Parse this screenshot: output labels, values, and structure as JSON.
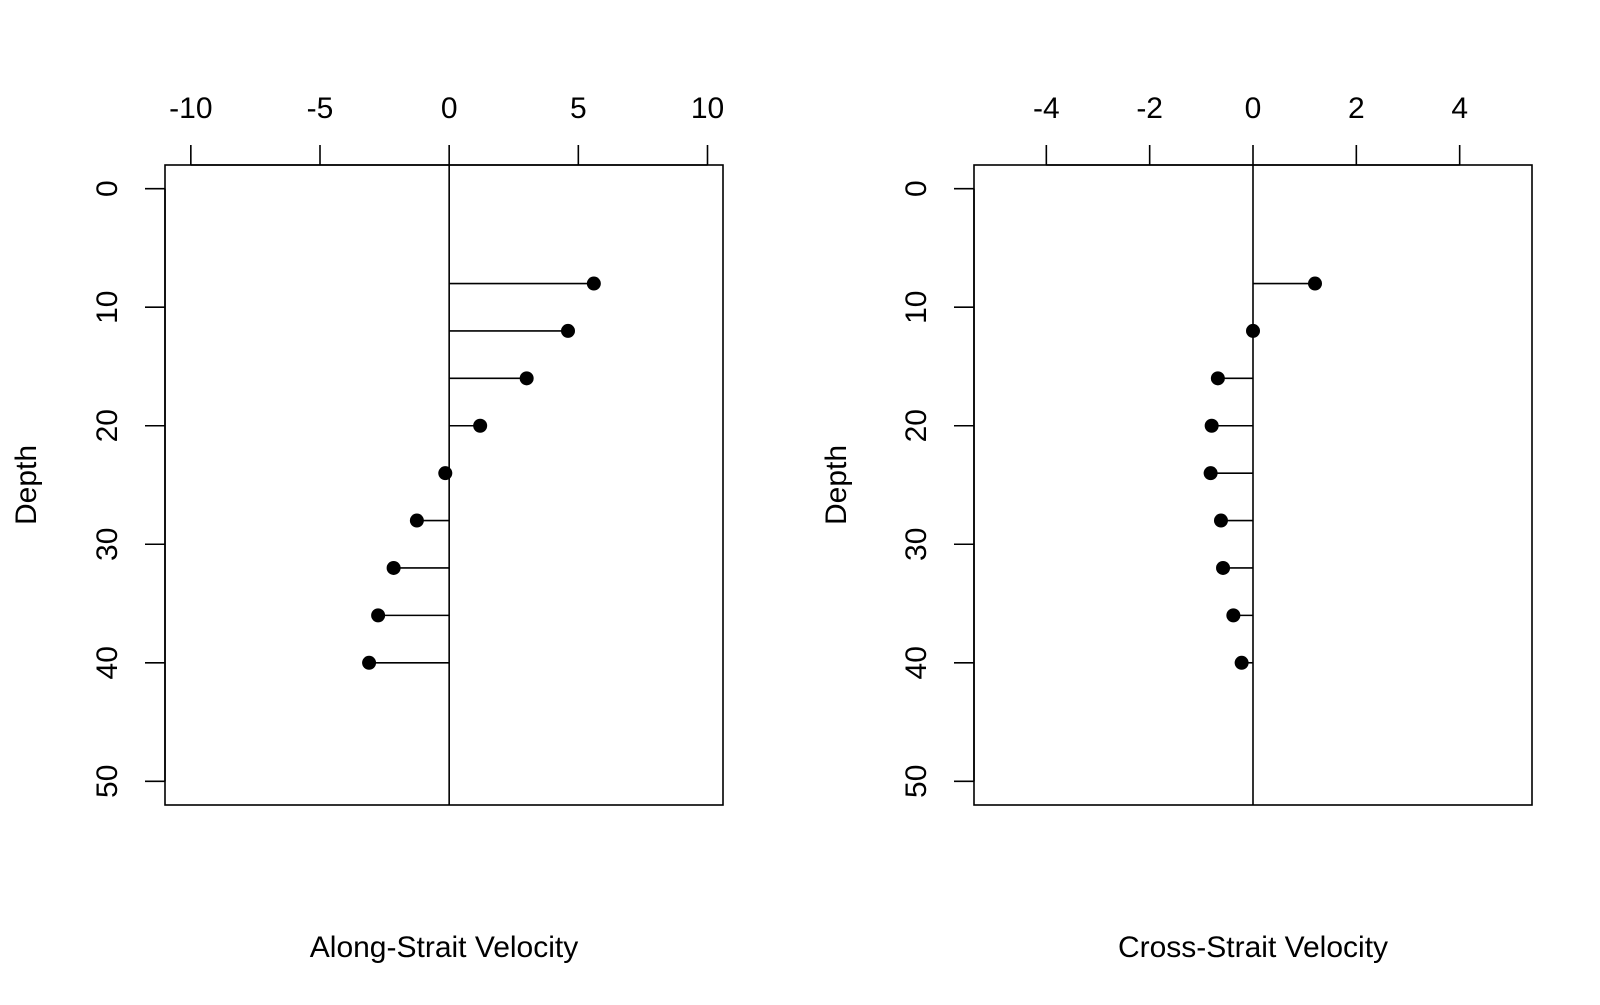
{
  "chart_data": [
    {
      "type": "scatter",
      "style": "lollipop-horizontal",
      "title": "",
      "xlabel": "Along-Strait Velocity",
      "ylabel": "Depth",
      "xlim": [
        -11,
        10.6
      ],
      "ylim": [
        52,
        -2
      ],
      "y_reversed": true,
      "x_axis_position": "top",
      "xticks": [
        -10,
        -5,
        0,
        5,
        10
      ],
      "yticks": [
        0,
        10,
        20,
        30,
        40,
        50
      ],
      "reference_line_x": 0,
      "points": [
        {
          "depth": 8,
          "value": 5.6
        },
        {
          "depth": 12,
          "value": 4.6
        },
        {
          "depth": 16,
          "value": 3.0
        },
        {
          "depth": 20,
          "value": 1.2
        },
        {
          "depth": 24,
          "value": -0.15
        },
        {
          "depth": 28,
          "value": -1.25
        },
        {
          "depth": 32,
          "value": -2.15
        },
        {
          "depth": 36,
          "value": -2.75
        },
        {
          "depth": 40,
          "value": -3.1
        }
      ]
    },
    {
      "type": "scatter",
      "style": "lollipop-horizontal",
      "title": "",
      "xlabel": "Cross-Strait Velocity",
      "ylabel": "Depth",
      "xlim": [
        -5.4,
        5.4
      ],
      "ylim": [
        52,
        -2
      ],
      "y_reversed": true,
      "x_axis_position": "top",
      "xticks": [
        -4,
        -2,
        0,
        2,
        4
      ],
      "yticks": [
        0,
        10,
        20,
        30,
        40,
        50
      ],
      "reference_line_x": 0,
      "points": [
        {
          "depth": 8,
          "value": 1.2
        },
        {
          "depth": 12,
          "value": 0.0
        },
        {
          "depth": 16,
          "value": -0.68
        },
        {
          "depth": 20,
          "value": -0.8
        },
        {
          "depth": 24,
          "value": -0.82
        },
        {
          "depth": 28,
          "value": -0.62
        },
        {
          "depth": 32,
          "value": -0.58
        },
        {
          "depth": 36,
          "value": -0.38
        },
        {
          "depth": 40,
          "value": -0.22
        }
      ]
    }
  ]
}
